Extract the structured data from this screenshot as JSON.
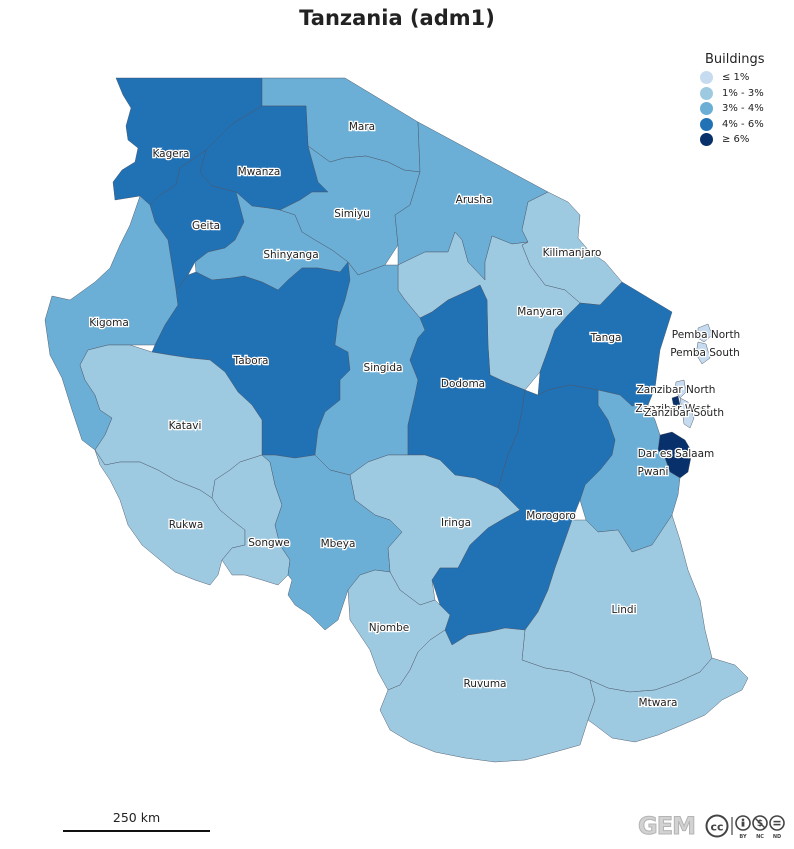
{
  "title": "Tanzania (adm1)",
  "legend": {
    "title": "Buildings",
    "items": [
      {
        "label": "≤ 1%",
        "color": "#c6dbef"
      },
      {
        "label": "1% - 3%",
        "color": "#9ecae1"
      },
      {
        "label": "3% - 4%",
        "color": "#6baed6"
      },
      {
        "label": "4% - 6%",
        "color": "#2171b5"
      },
      {
        "label": "≥ 6%",
        "color": "#08306b"
      }
    ]
  },
  "regions": [
    {
      "name": "Kagera",
      "cls": 3
    },
    {
      "name": "Mara",
      "cls": 2
    },
    {
      "name": "Mwanza",
      "cls": 3
    },
    {
      "name": "Geita",
      "cls": 3
    },
    {
      "name": "Simiyu",
      "cls": 2
    },
    {
      "name": "Arusha",
      "cls": 2
    },
    {
      "name": "Kilimanjaro",
      "cls": 1
    },
    {
      "name": "Shinyanga",
      "cls": 2
    },
    {
      "name": "Kigoma",
      "cls": 2
    },
    {
      "name": "Manyara",
      "cls": 1
    },
    {
      "name": "Tanga",
      "cls": 3
    },
    {
      "name": "Pemba North",
      "cls": 0
    },
    {
      "name": "Pemba South",
      "cls": 0
    },
    {
      "name": "Tabora",
      "cls": 3
    },
    {
      "name": "Singida",
      "cls": 2
    },
    {
      "name": "Dodoma",
      "cls": 3
    },
    {
      "name": "Zanzibar North",
      "cls": 0
    },
    {
      "name": "Zanzibar West",
      "cls": 4
    },
    {
      "name": "Zanzibar South",
      "cls": 0
    },
    {
      "name": "Katavi",
      "cls": 1
    },
    {
      "name": "Dar es Salaam",
      "cls": 4
    },
    {
      "name": "Pwani",
      "cls": 2
    },
    {
      "name": "Iringa",
      "cls": 1
    },
    {
      "name": "Morogoro",
      "cls": 3
    },
    {
      "name": "Rukwa",
      "cls": 1
    },
    {
      "name": "Songwe",
      "cls": 1
    },
    {
      "name": "Mbeya",
      "cls": 2
    },
    {
      "name": "Lindi",
      "cls": 1
    },
    {
      "name": "Njombe",
      "cls": 1
    },
    {
      "name": "Ruvuma",
      "cls": 1
    },
    {
      "name": "Mtwara",
      "cls": 1
    }
  ],
  "scale": {
    "label": "250 km"
  },
  "credits": {
    "logo": "GEM",
    "license_icons": [
      "cc-icon",
      "by-icon",
      "nc-icon",
      "nd-icon"
    ]
  }
}
